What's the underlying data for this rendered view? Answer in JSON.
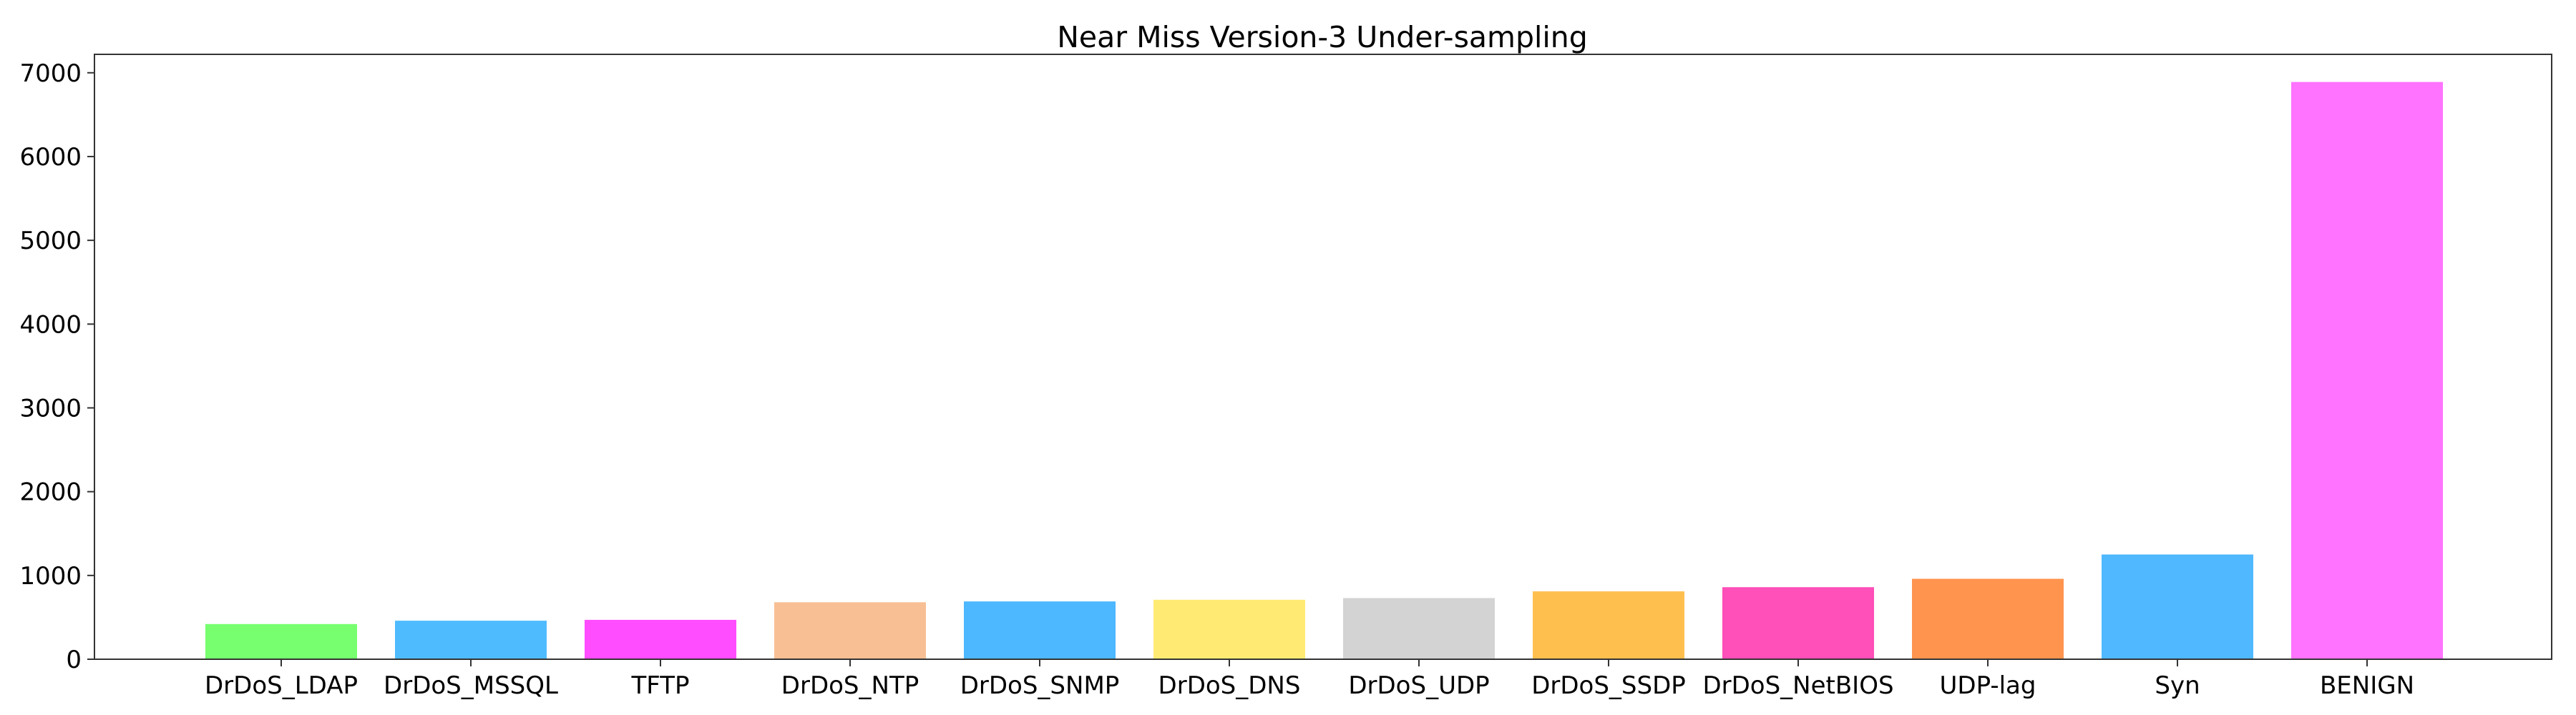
{
  "chart_data": {
    "type": "bar",
    "title": "Near Miss Version-3 Under-sampling",
    "xlabel": "",
    "ylabel": "",
    "categories": [
      "DrDoS_LDAP",
      "DrDoS_MSSQL",
      "TFTP",
      "DrDoS_NTP",
      "DrDoS_SNMP",
      "DrDoS_DNS",
      "DrDoS_UDP",
      "DrDoS_SSDP",
      "DrDoS_NetBIOS",
      "UDP-lag",
      "Syn",
      "BENIGN"
    ],
    "values": [
      420,
      460,
      470,
      680,
      690,
      710,
      730,
      810,
      860,
      960,
      1250,
      6890
    ],
    "colors": [
      "#77ff6f",
      "#4fbbff",
      "#ff4dff",
      "#f8bf94",
      "#4db7ff",
      "#ffeb73",
      "#d3d3d3",
      "#ffbf4f",
      "#ff4fb8",
      "#ff944f",
      "#4fb8ff",
      "#ff73ff"
    ],
    "ylim": [
      0,
      7220
    ],
    "yticks": [
      0,
      1000,
      2000,
      3000,
      4000,
      5000,
      6000,
      7000
    ],
    "grid": false,
    "legend": false
  }
}
